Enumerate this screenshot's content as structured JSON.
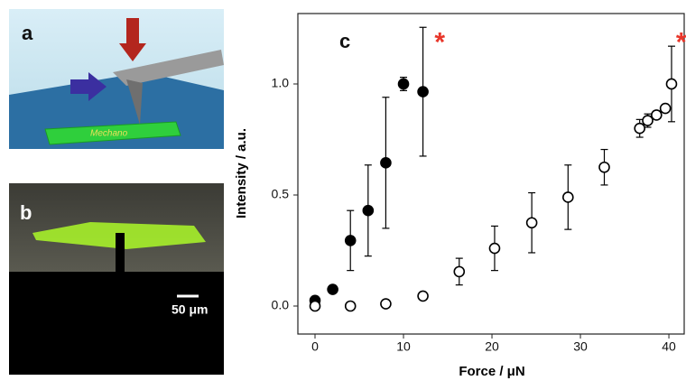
{
  "panels": {
    "a": {
      "label": "a",
      "text": "Mechano"
    },
    "b": {
      "label": "b",
      "scale_bar": "50 μm"
    }
  },
  "chart_data": {
    "type": "scatter",
    "panel_label": "c",
    "xlabel": "Force / μN",
    "ylabel": "Intensity / a.u.",
    "xlim": [
      -1.94,
      41.73
    ],
    "ylim": [
      -0.126,
      1.317
    ],
    "xticks": [
      0,
      10,
      20,
      30,
      40
    ],
    "yticks": [
      {
        "value": 0,
        "label": "0.0"
      },
      {
        "value": 0.5,
        "label": "0.5"
      },
      {
        "value": 1,
        "label": "1.0"
      }
    ],
    "series": [
      {
        "color": "#000000",
        "filled": true,
        "x": [
          0,
          2,
          4,
          6,
          8,
          10,
          12.2
        ],
        "values": [
          0.025,
          0.075,
          0.295,
          0.43,
          0.645,
          1.0,
          0.965
        ],
        "errors": [
          null,
          null,
          0.135,
          0.205,
          0.295,
          0.03,
          0.29
        ]
      },
      {
        "color": "#000000",
        "filled": false,
        "x": [
          0,
          4,
          8,
          12.2,
          16.3,
          20.3,
          24.5,
          28.6,
          32.7,
          36.7,
          37.6,
          38.6,
          39.6,
          40.3
        ],
        "values": [
          0.0,
          0.0,
          0.01,
          0.045,
          0.155,
          0.26,
          0.375,
          0.49,
          0.625,
          0.8,
          0.835,
          0.86,
          0.89,
          1.0
        ],
        "errors": [
          null,
          null,
          null,
          null,
          0.06,
          0.1,
          0.135,
          0.145,
          0.08,
          0.04,
          0.03,
          null,
          null,
          0.17
        ]
      }
    ],
    "annotations": [
      {
        "text": "*",
        "x": 14.1,
        "y": 1.18,
        "color": "#e8362a"
      },
      {
        "text": "*",
        "x": 41.4,
        "y": 1.18,
        "color": "#e8362a"
      }
    ]
  }
}
